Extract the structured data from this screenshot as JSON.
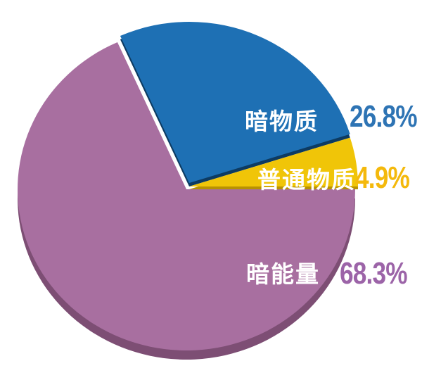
{
  "chart_data": {
    "type": "pie",
    "title": "",
    "effect": "3d-exploded-pie",
    "background_color": "#ffffff",
    "unit": "%",
    "legend_position": "labels-on-and-beside-slices",
    "slices": [
      {
        "name": "dark-matter",
        "label": "暗物质",
        "value": 26.8,
        "pct_label": "26.8%",
        "color": "#1E70B4",
        "side_color": "#0D3B62",
        "label_color": "#FFFFFF",
        "pct_color": "#2E74B4"
      },
      {
        "name": "ordinary-matter",
        "label": "普通物质",
        "value": 4.9,
        "pct_label": "4.9%",
        "color": "#F0C508",
        "side_color": "#B89202",
        "label_color": "#FFFFFF",
        "pct_color": "#F4B90C"
      },
      {
        "name": "dark-energy",
        "label": "暗能量",
        "value": 68.3,
        "pct_label": "68.3%",
        "color": "#A86FA0",
        "side_color": "#7D4E74",
        "label_color": "#FFFFFF",
        "pct_color": "#9C64A8"
      }
    ]
  }
}
